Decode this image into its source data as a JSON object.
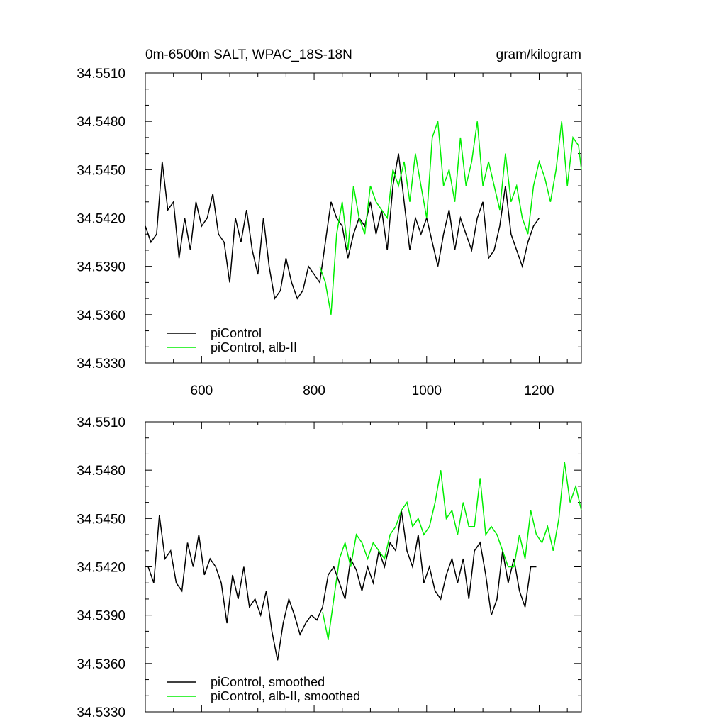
{
  "figure": {
    "title_left": "0m-6500m SALT, WPAC_18S-18N",
    "title_right": "gram/kilogram"
  },
  "colors": {
    "piControl": "#000000",
    "alb_II": "#00ee00"
  },
  "chart_data": [
    {
      "type": "line",
      "xlim": [
        500,
        1275
      ],
      "ylim": [
        34.533,
        34.551
      ],
      "x_ticks": [
        600,
        800,
        1000,
        1200
      ],
      "y_ticks": [
        34.533,
        34.536,
        34.539,
        34.542,
        34.545,
        34.548,
        34.551
      ],
      "y_tick_labels": [
        "34.5330",
        "34.5360",
        "34.5390",
        "34.5420",
        "34.5450",
        "34.5480",
        "34.5510"
      ],
      "legend_position": "bottom-left",
      "series": [
        {
          "name": "piControl",
          "color": "#000000",
          "x": [
            500,
            510,
            520,
            530,
            540,
            550,
            560,
            570,
            580,
            590,
            600,
            610,
            620,
            630,
            640,
            650,
            660,
            670,
            680,
            690,
            700,
            710,
            720,
            730,
            740,
            750,
            760,
            770,
            780,
            790,
            800,
            810,
            820,
            830,
            840,
            850,
            860,
            870,
            880,
            890,
            900,
            910,
            920,
            930,
            940,
            950,
            960,
            970,
            980,
            990,
            1000,
            1010,
            1020,
            1030,
            1040,
            1050,
            1060,
            1070,
            1080,
            1090,
            1100,
            1110,
            1120,
            1130,
            1140,
            1150,
            1160,
            1170,
            1180,
            1190,
            1200
          ],
          "y": [
            34.5415,
            34.5405,
            34.541,
            34.5455,
            34.5425,
            34.543,
            34.5395,
            34.542,
            34.54,
            34.543,
            34.5415,
            34.542,
            34.5435,
            34.541,
            34.5405,
            34.538,
            34.542,
            34.5405,
            34.5425,
            34.54,
            34.5385,
            34.542,
            34.539,
            34.537,
            34.5375,
            34.5395,
            34.538,
            34.537,
            34.5375,
            34.539,
            34.5385,
            34.538,
            34.5405,
            34.543,
            34.542,
            34.5415,
            34.5395,
            34.541,
            34.542,
            34.5415,
            34.543,
            34.541,
            34.5425,
            34.54,
            34.544,
            34.546,
            34.543,
            34.54,
            34.542,
            34.541,
            34.542,
            34.5405,
            34.539,
            34.541,
            34.5425,
            34.54,
            34.542,
            34.541,
            34.54,
            34.542,
            34.543,
            34.5395,
            34.54,
            34.5415,
            34.544,
            34.541,
            34.54,
            34.539,
            34.5405,
            34.5415,
            34.542
          ]
        },
        {
          "name": "piControl, alb-II",
          "color": "#00ee00",
          "x": [
            810,
            820,
            830,
            840,
            850,
            860,
            870,
            880,
            890,
            900,
            910,
            920,
            930,
            940,
            950,
            960,
            970,
            980,
            990,
            1000,
            1010,
            1020,
            1030,
            1040,
            1050,
            1060,
            1070,
            1080,
            1090,
            1100,
            1110,
            1120,
            1130,
            1140,
            1150,
            1160,
            1170,
            1180,
            1190,
            1200,
            1210,
            1220,
            1230,
            1240,
            1250,
            1260,
            1270,
            1275
          ],
          "y": [
            34.539,
            34.538,
            34.536,
            34.541,
            34.543,
            34.54,
            34.544,
            34.542,
            34.541,
            34.544,
            34.543,
            34.5425,
            34.542,
            34.545,
            34.544,
            34.5455,
            34.543,
            34.546,
            34.544,
            34.542,
            34.547,
            34.548,
            34.544,
            34.545,
            34.543,
            34.547,
            34.544,
            34.5455,
            34.548,
            34.544,
            34.5455,
            34.544,
            34.5425,
            34.546,
            34.543,
            34.544,
            34.542,
            34.541,
            34.544,
            34.5455,
            34.5445,
            34.543,
            34.545,
            34.548,
            34.544,
            34.547,
            34.5465,
            34.545
          ]
        }
      ],
      "legend": [
        "piControl",
        "piControl, alb-II"
      ]
    },
    {
      "type": "line",
      "xlim": [
        500,
        1275
      ],
      "ylim": [
        34.533,
        34.551
      ],
      "x_ticks": [
        600,
        800,
        1000,
        1200
      ],
      "y_ticks": [
        34.533,
        34.536,
        34.539,
        34.542,
        34.545,
        34.548,
        34.551
      ],
      "y_tick_labels": [
        "34.5330",
        "34.5360",
        "34.5390",
        "34.5420",
        "34.5450",
        "34.5480",
        "34.5510"
      ],
      "legend_position": "bottom-left",
      "series": [
        {
          "name": "piControl, smoothed",
          "color": "#000000",
          "x": [
            505,
            515,
            525,
            535,
            545,
            555,
            565,
            575,
            585,
            595,
            605,
            615,
            625,
            635,
            645,
            655,
            665,
            675,
            685,
            695,
            705,
            715,
            725,
            735,
            745,
            755,
            765,
            775,
            785,
            795,
            805,
            815,
            825,
            835,
            845,
            855,
            865,
            875,
            885,
            895,
            905,
            915,
            925,
            935,
            945,
            955,
            965,
            975,
            985,
            995,
            1005,
            1015,
            1025,
            1035,
            1045,
            1055,
            1065,
            1075,
            1085,
            1095,
            1105,
            1115,
            1125,
            1135,
            1145,
            1155,
            1165,
            1175,
            1185,
            1195
          ],
          "y": [
            34.542,
            34.541,
            34.5452,
            34.5425,
            34.543,
            34.541,
            34.5405,
            34.5435,
            34.542,
            34.544,
            34.5415,
            34.5425,
            34.542,
            34.541,
            34.5385,
            34.5415,
            34.54,
            34.542,
            34.5395,
            34.54,
            34.539,
            34.5405,
            34.538,
            34.5362,
            34.5385,
            34.54,
            34.539,
            34.5378,
            34.5385,
            34.539,
            34.5387,
            34.5395,
            34.5415,
            34.542,
            34.541,
            34.54,
            34.5425,
            34.5418,
            34.5405,
            34.542,
            34.541,
            34.543,
            34.542,
            34.5435,
            34.543,
            34.5455,
            34.543,
            34.542,
            34.544,
            34.541,
            34.542,
            34.5405,
            34.54,
            34.5415,
            34.5425,
            34.541,
            34.5425,
            34.54,
            34.543,
            34.5435,
            34.5415,
            34.539,
            34.54,
            34.543,
            34.541,
            34.5425,
            34.5405,
            34.5395,
            34.542,
            34.542
          ]
        },
        {
          "name": "piControl, alb-II, smoothed",
          "color": "#00ee00",
          "x": [
            815,
            825,
            835,
            845,
            855,
            865,
            875,
            885,
            895,
            905,
            915,
            925,
            935,
            945,
            955,
            965,
            975,
            985,
            995,
            1005,
            1015,
            1025,
            1035,
            1045,
            1055,
            1065,
            1075,
            1085,
            1095,
            1105,
            1115,
            1125,
            1135,
            1145,
            1155,
            1165,
            1175,
            1185,
            1195,
            1205,
            1215,
            1225,
            1235,
            1245,
            1255,
            1265,
            1275
          ],
          "y": [
            34.5392,
            34.5375,
            34.54,
            34.5425,
            34.5435,
            34.542,
            34.544,
            34.5435,
            34.5425,
            34.5435,
            34.543,
            34.5425,
            34.544,
            34.5445,
            34.5455,
            34.546,
            34.5445,
            34.545,
            34.544,
            34.5445,
            34.546,
            34.548,
            34.545,
            34.5455,
            34.544,
            34.546,
            34.5445,
            34.5445,
            34.5475,
            34.544,
            34.5445,
            34.544,
            34.543,
            34.542,
            34.542,
            34.544,
            34.5425,
            34.5455,
            34.544,
            34.5435,
            34.5445,
            34.543,
            34.545,
            34.5485,
            34.546,
            34.547,
            34.5455
          ]
        }
      ],
      "legend": [
        "piControl, smoothed",
        "piControl, alb-II, smoothed"
      ]
    }
  ]
}
